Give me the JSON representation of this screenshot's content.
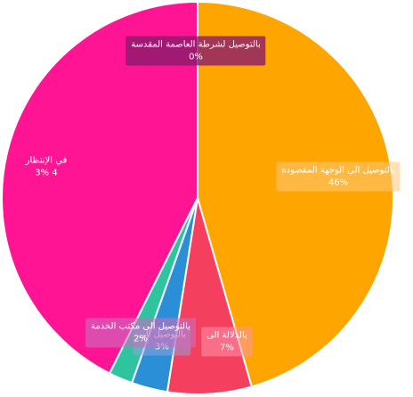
{
  "chart_data": {
    "type": "pie",
    "start_angle_deg": 0,
    "direction": "clockwise",
    "slices": [
      {
        "name": "بالتوصيل الى الوجهة المقصودة",
        "value": 46,
        "label": "46%",
        "color": "#FFA500"
      },
      {
        "name": "بالدلالة الى",
        "value": 7,
        "label": "7%",
        "color": "#F43F5E"
      },
      {
        "name": "بالتوصيل الى",
        "value": 3,
        "label": "3%",
        "color": "#2B8FD8"
      },
      {
        "name": "بالتوصيل الى مكتب الخدمة",
        "value": 2,
        "label": "2%",
        "color": "#2EC4A0"
      },
      {
        "name": "في الإنتظار",
        "value": 43,
        "label": "4 3%",
        "color": "#FF1493"
      },
      {
        "name": "بالتوصيل لشرطة العاصمة المقدسة",
        "value": 0,
        "label": "0%",
        "color": "#8B1A6B"
      }
    ]
  }
}
